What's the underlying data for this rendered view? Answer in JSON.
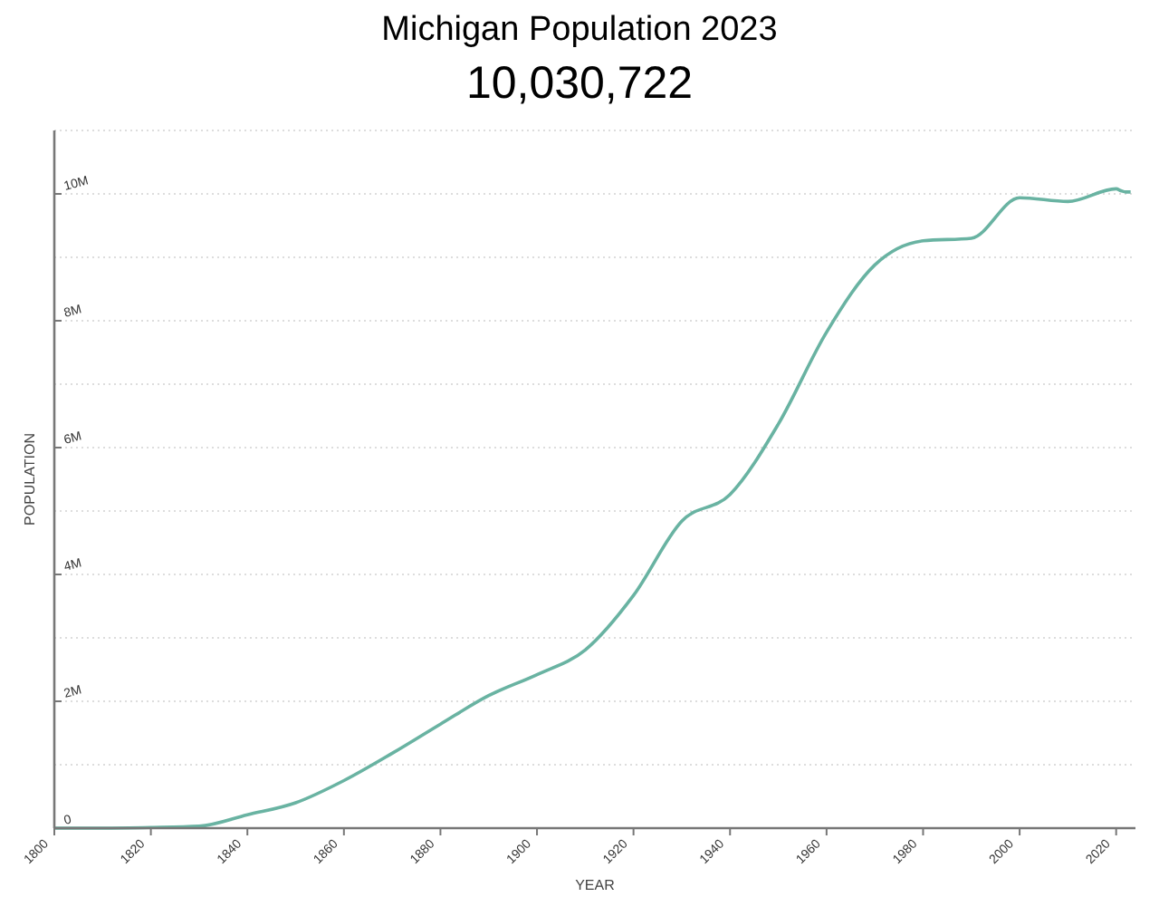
{
  "chart_data": {
    "type": "line",
    "title": "Michigan Population 2023",
    "subtitle": "10,030,722",
    "xlabel": "YEAR",
    "ylabel": "POPULATION",
    "x": [
      1800,
      1810,
      1820,
      1830,
      1840,
      1850,
      1860,
      1870,
      1880,
      1890,
      1900,
      1910,
      1920,
      1930,
      1940,
      1950,
      1960,
      1970,
      1980,
      1990,
      2000,
      2010,
      2020,
      2021,
      2022,
      2023
    ],
    "series": [
      {
        "color": "#69b3a2",
        "values": [
          0,
          0,
          10000,
          30000,
          210000,
          400000,
          750000,
          1180000,
          1640000,
          2090000,
          2420000,
          2810000,
          3670000,
          4840000,
          5260000,
          6370000,
          7820000,
          8880000,
          9260000,
          9300000,
          9940000,
          9880000,
          10080000,
          10050000,
          10030000,
          10030000
        ]
      }
    ],
    "xlim": [
      1800,
      2024
    ],
    "xticks": [
      1800,
      1820,
      1840,
      1860,
      1880,
      1900,
      1920,
      1940,
      1960,
      1980,
      2000,
      2020
    ],
    "ylim": [
      0,
      11000000
    ],
    "yticks": [
      {
        "value": 0,
        "label": "0"
      },
      {
        "value": 1000000,
        "label": null
      },
      {
        "value": 2000000,
        "label": "2M"
      },
      {
        "value": 3000000,
        "label": null
      },
      {
        "value": 4000000,
        "label": "4M"
      },
      {
        "value": 5000000,
        "label": null
      },
      {
        "value": 6000000,
        "label": "6M"
      },
      {
        "value": 7000000,
        "label": null
      },
      {
        "value": 8000000,
        "label": "8M"
      },
      {
        "value": 9000000,
        "label": null
      },
      {
        "value": 10000000,
        "label": "10M"
      },
      {
        "value": 11000000,
        "label": null
      }
    ],
    "grid": "y",
    "marker": "none",
    "line_style": "solid"
  }
}
